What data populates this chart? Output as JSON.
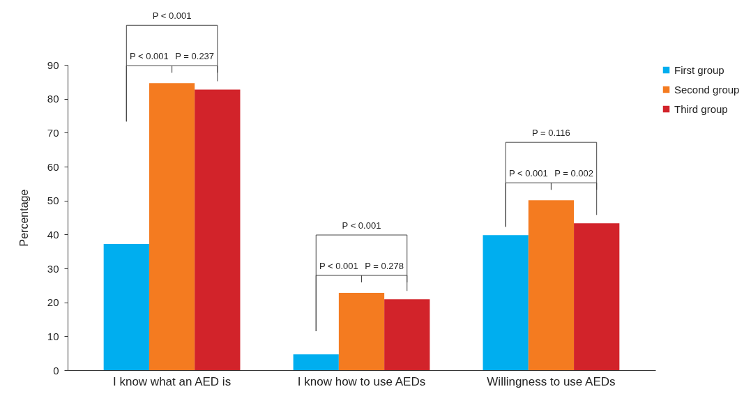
{
  "chart_data": {
    "type": "bar",
    "ylabel": "Percentage",
    "categories": [
      "I know what an AED is",
      "I know how to use AEDs",
      "Willingness to use AEDs"
    ],
    "series": [
      {
        "name": "First group",
        "color": "#00aeef",
        "values": [
          37.2,
          4.7,
          39.8
        ]
      },
      {
        "name": "Second group",
        "color": "#f47b20",
        "values": [
          84.6,
          22.8,
          50.1
        ]
      },
      {
        "name": "Third group",
        "color": "#d2232a",
        "values": [
          82.7,
          20.9,
          43.3
        ]
      }
    ],
    "ylim": [
      0,
      90
    ],
    "yticks": [
      0,
      10,
      20,
      30,
      40,
      50,
      60,
      70,
      80,
      90
    ],
    "grid": false,
    "legend": "top right",
    "annotations": [
      "P < 0.001",
      "P < 0.001",
      "P = 0.237",
      "P < 0.001",
      "P < 0.001",
      "P = 0.278",
      "P = 0.116",
      "P < 0.001",
      "P = 0.002"
    ]
  }
}
